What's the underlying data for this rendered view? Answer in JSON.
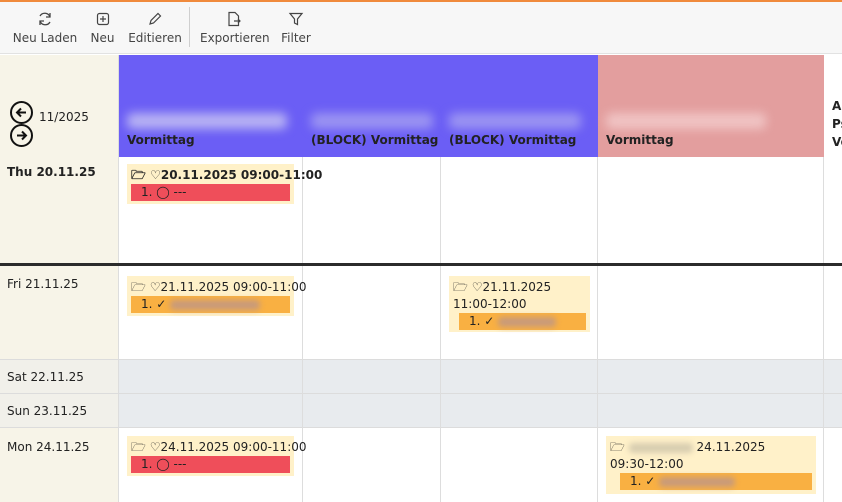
{
  "toolbar": {
    "reload": "Neu Laden",
    "new": "Neu",
    "edit": "Editieren",
    "export": "Exportieren",
    "filter": "Filter"
  },
  "calendar": {
    "month": "11/2025",
    "first_day": "Thu 20.11.25",
    "columns": [
      {
        "caption": "Vormittag",
        "color": "#6b5ef5"
      },
      {
        "caption": "(BLOCK) Vormittag",
        "color": "#6b5ef5"
      },
      {
        "caption": "(BLOCK) Vormittag",
        "color": "#6b5ef5"
      },
      {
        "caption": "Vormittag",
        "color": "#e39e9e"
      }
    ],
    "cut_column_lines": [
      "Ar",
      "Ps",
      "Vo"
    ],
    "days": [
      "Fri 21.11.25",
      "Sat 22.11.25",
      "Sun 23.11.25",
      "Mon 24.11.25"
    ]
  },
  "appointments": {
    "a1": {
      "title": "20.11.2025 09:00-11:00",
      "item": "1. ◯ ---"
    },
    "a2": {
      "title": "21.11.2025 09:00-11:00",
      "item": "1. ✓"
    },
    "a3": {
      "title": "21.11.2025",
      "time": "11:00-12:00",
      "item": "1. ✓"
    },
    "a4": {
      "title": "24.11.2025 09:00-11:00",
      "item": "1. ◯ ---"
    },
    "a5": {
      "title": "24.11.2025",
      "time": "09:30-12:00",
      "item": "1. ✓"
    }
  }
}
